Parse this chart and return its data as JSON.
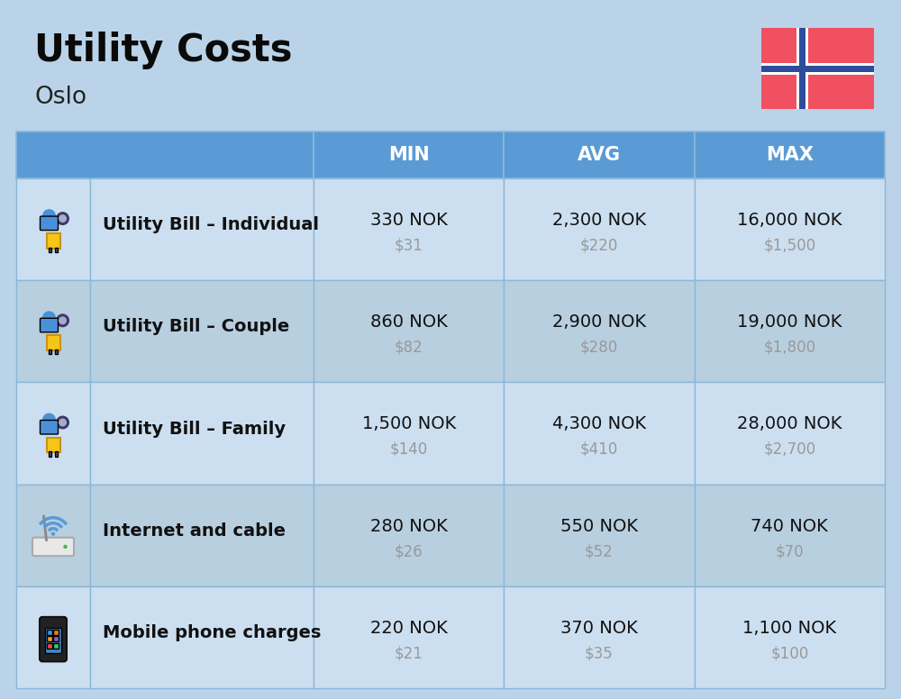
{
  "title": "Utility Costs",
  "subtitle": "Oslo",
  "bg_color": "#bad3e8",
  "header_bg_color": "#5b9bd5",
  "row_bg_odd": "#ccdff0",
  "row_bg_even": "#b8cfe0",
  "header_text_color": "#ffffff",
  "cell_border_color": "#8ab8d8",
  "title_color": "#0a0a0a",
  "subtitle_color": "#222222",
  "nok_color": "#111111",
  "usd_color": "#999999",
  "label_color": "#111111",
  "flag_red": "#f05060",
  "flag_blue": "#2d4d9a",
  "flag_white": "#ffffff",
  "rows": [
    {
      "label": "Utility Bill – Individual",
      "min_nok": "330 NOK",
      "min_usd": "$31",
      "avg_nok": "2,300 NOK",
      "avg_usd": "$220",
      "max_nok": "16,000 NOK",
      "max_usd": "$1,500"
    },
    {
      "label": "Utility Bill – Couple",
      "min_nok": "860 NOK",
      "min_usd": "$82",
      "avg_nok": "2,900 NOK",
      "avg_usd": "$280",
      "max_nok": "19,000 NOK",
      "max_usd": "$1,800"
    },
    {
      "label": "Utility Bill – Family",
      "min_nok": "1,500 NOK",
      "min_usd": "$140",
      "avg_nok": "4,300 NOK",
      "avg_usd": "$410",
      "max_nok": "28,000 NOK",
      "max_usd": "$2,700"
    },
    {
      "label": "Internet and cable",
      "min_nok": "280 NOK",
      "min_usd": "$26",
      "avg_nok": "550 NOK",
      "avg_usd": "$52",
      "max_nok": "740 NOK",
      "max_usd": "$70"
    },
    {
      "label": "Mobile phone charges",
      "min_nok": "220 NOK",
      "min_usd": "$21",
      "avg_nok": "370 NOK",
      "avg_usd": "$35",
      "max_nok": "1,100 NOK",
      "max_usd": "$100"
    }
  ]
}
